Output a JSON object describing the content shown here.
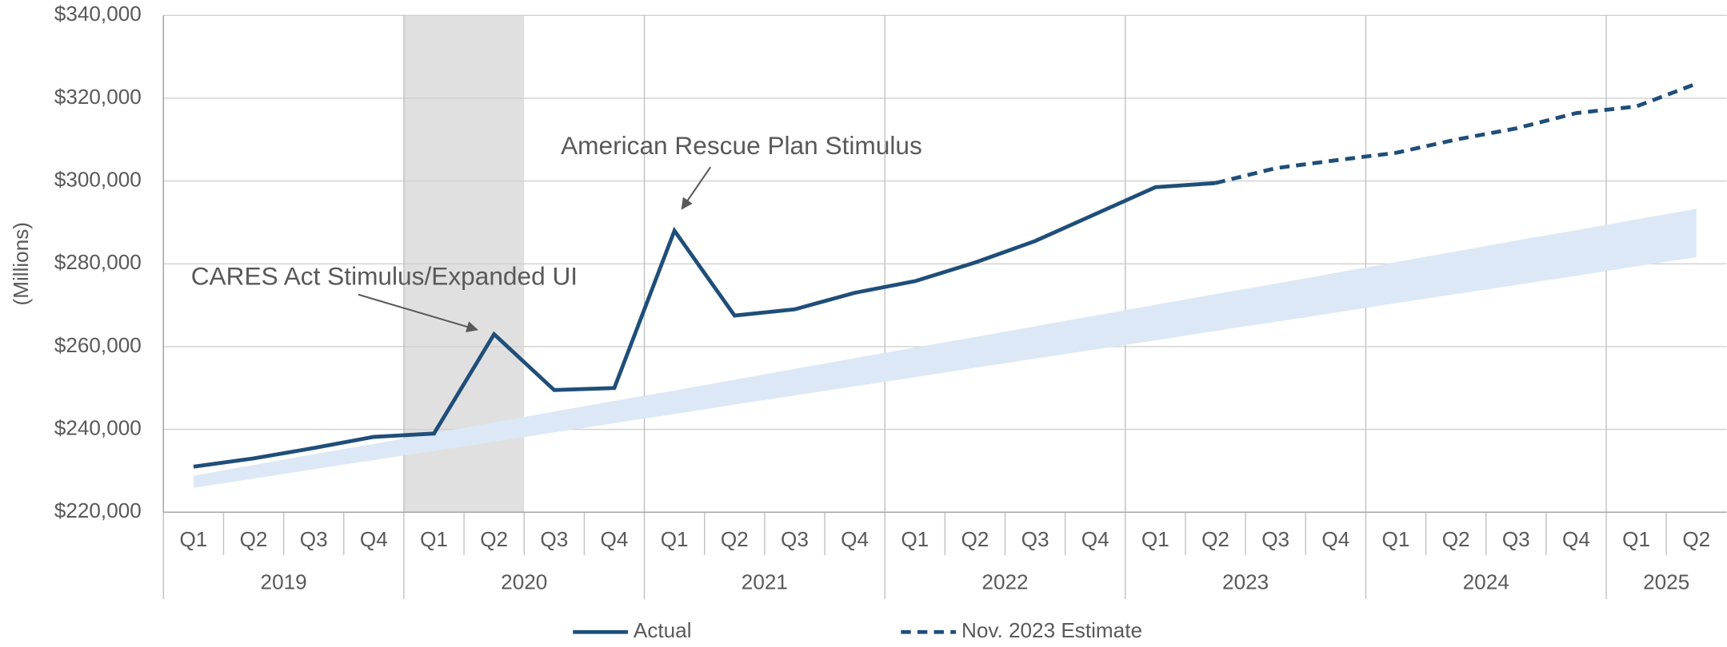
{
  "chart_data": {
    "type": "line",
    "y_label": "(Millions)",
    "categories": [
      "Q1",
      "Q2",
      "Q3",
      "Q4",
      "Q1",
      "Q2",
      "Q3",
      "Q4",
      "Q1",
      "Q2",
      "Q3",
      "Q4",
      "Q1",
      "Q2",
      "Q3",
      "Q4",
      "Q1",
      "Q2",
      "Q3",
      "Q4",
      "Q1",
      "Q2",
      "Q3",
      "Q4",
      "Q1",
      "Q2"
    ],
    "years": [
      "2019",
      "2020",
      "2021",
      "2022",
      "2023",
      "2024",
      "2025"
    ],
    "series": [
      {
        "name": "Actual",
        "color": "#1f4e79",
        "dash": false,
        "values": [
          231000,
          233000,
          235500,
          238200,
          239000,
          263000,
          249500,
          250000,
          288000,
          267500,
          269000,
          273000,
          275800,
          280300,
          285500,
          292000,
          298500,
          299500,
          null,
          null,
          null,
          null,
          null,
          null,
          null,
          null
        ]
      },
      {
        "name": "Nov. 2023 Estimate",
        "color": "#1f4e79",
        "dash": true,
        "values": [
          null,
          null,
          null,
          null,
          null,
          null,
          null,
          null,
          null,
          null,
          null,
          null,
          null,
          null,
          null,
          null,
          null,
          299500,
          303100,
          305000,
          306800,
          310000,
          312700,
          316400,
          318000,
          323500
        ]
      }
    ],
    "band": {
      "color": "#dce8f5",
      "upper": [
        228800,
        231400,
        234000,
        236500,
        239100,
        241700,
        244300,
        246900,
        249400,
        252000,
        254600,
        257200,
        259800,
        262300,
        264900,
        267500,
        270100,
        272700,
        275200,
        277800,
        280400,
        283000,
        285600,
        288100,
        290700,
        293300
      ],
      "lower": [
        225900,
        228100,
        230400,
        232600,
        234800,
        237000,
        239300,
        241500,
        243700,
        246000,
        248200,
        250400,
        252600,
        254900,
        257100,
        259300,
        261500,
        263800,
        266000,
        268200,
        270500,
        272700,
        274900,
        277100,
        279400,
        281600
      ]
    },
    "ylim": [
      220000,
      340000
    ],
    "yticks": [
      {
        "value": 220000,
        "label": "$220,000"
      },
      {
        "value": 240000,
        "label": "$240,000"
      },
      {
        "value": 260000,
        "label": "$260,000"
      },
      {
        "value": 280000,
        "label": "$280,000"
      },
      {
        "value": 300000,
        "label": "$300,000"
      },
      {
        "value": 320000,
        "label": "$320,000"
      },
      {
        "value": 340000,
        "label": "$340,000"
      }
    ],
    "grid": true,
    "annotations": [
      "CARES Act Stimulus/Expanded UI",
      "American Rescue Plan Stimulus"
    ]
  }
}
